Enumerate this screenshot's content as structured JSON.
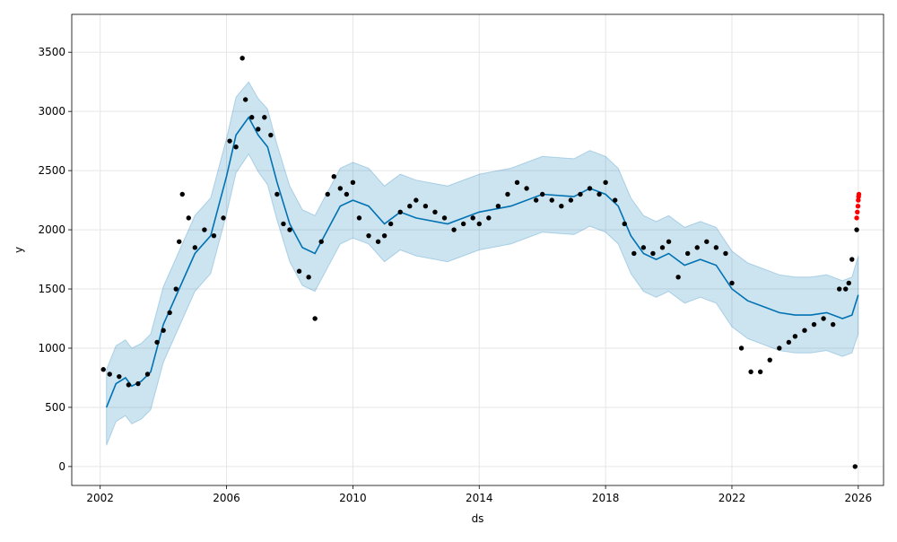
{
  "chart_data": {
    "type": "line",
    "title": "",
    "xlabel": "ds",
    "ylabel": "y",
    "grid": true,
    "legend": "none",
    "xlim": [
      2001.1,
      2026.8
    ],
    "ylim": [
      -160,
      3820
    ],
    "x_ticks": [
      2002,
      2006,
      2010,
      2014,
      2018,
      2022,
      2026
    ],
    "y_ticks": [
      0,
      500,
      1000,
      1500,
      2000,
      2500,
      3000,
      3500
    ],
    "colors": {
      "forecast_line": "#0072B2",
      "uncertainty_band": "#0072B2",
      "history_points": "#000000",
      "recent_points": "#ff0000",
      "grid": "#e6e6e6"
    },
    "series": [
      {
        "name": "yhat",
        "kind": "line",
        "x": [
          2002.2,
          2002.5,
          2002.8,
          2003.0,
          2003.3,
          2003.6,
          2004.0,
          2004.5,
          2005.0,
          2005.5,
          2006.0,
          2006.3,
          2006.7,
          2007.0,
          2007.3,
          2007.6,
          2008.0,
          2008.4,
          2008.8,
          2009.2,
          2009.6,
          2010.0,
          2010.5,
          2011.0,
          2011.5,
          2012.0,
          2013.0,
          2014.0,
          2015.0,
          2016.0,
          2017.0,
          2017.5,
          2018.0,
          2018.4,
          2018.8,
          2019.2,
          2019.6,
          2020.0,
          2020.5,
          2021.0,
          2021.5,
          2022.0,
          2022.5,
          2023.0,
          2023.5,
          2024.0,
          2024.5,
          2025.0,
          2025.5,
          2025.8,
          2026.0
        ],
        "y": [
          500,
          700,
          750,
          680,
          720,
          800,
          1200,
          1500,
          1800,
          1950,
          2450,
          2800,
          2950,
          2800,
          2700,
          2400,
          2050,
          1850,
          1800,
          2000,
          2200,
          2250,
          2200,
          2050,
          2150,
          2100,
          2050,
          2150,
          2200,
          2300,
          2280,
          2350,
          2300,
          2200,
          1950,
          1800,
          1750,
          1800,
          1700,
          1750,
          1700,
          1500,
          1400,
          1350,
          1300,
          1280,
          1280,
          1300,
          1250,
          1280,
          1450
        ]
      },
      {
        "name": "yhat_upper",
        "kind": "band_upper",
        "x": [
          2002.2,
          2002.5,
          2002.8,
          2003.0,
          2003.3,
          2003.6,
          2004.0,
          2004.5,
          2005.0,
          2005.5,
          2006.0,
          2006.3,
          2006.7,
          2007.0,
          2007.3,
          2007.6,
          2008.0,
          2008.4,
          2008.8,
          2009.2,
          2009.6,
          2010.0,
          2010.5,
          2011.0,
          2011.5,
          2012.0,
          2013.0,
          2014.0,
          2015.0,
          2016.0,
          2017.0,
          2017.5,
          2018.0,
          2018.4,
          2018.8,
          2019.2,
          2019.6,
          2020.0,
          2020.5,
          2021.0,
          2021.5,
          2022.0,
          2022.5,
          2023.0,
          2023.5,
          2024.0,
          2024.5,
          2025.0,
          2025.5,
          2025.8,
          2026.0
        ],
        "y": [
          820,
          1020,
          1070,
          1000,
          1040,
          1120,
          1520,
          1820,
          2120,
          2270,
          2770,
          3120,
          3250,
          3110,
          3020,
          2720,
          2370,
          2170,
          2120,
          2320,
          2520,
          2570,
          2520,
          2370,
          2470,
          2420,
          2370,
          2470,
          2520,
          2620,
          2600,
          2670,
          2620,
          2520,
          2270,
          2120,
          2070,
          2120,
          2020,
          2070,
          2020,
          1820,
          1720,
          1670,
          1620,
          1600,
          1600,
          1620,
          1570,
          1600,
          1780
        ]
      },
      {
        "name": "yhat_lower",
        "kind": "band_lower",
        "x": [
          2002.2,
          2002.5,
          2002.8,
          2003.0,
          2003.3,
          2003.6,
          2004.0,
          2004.5,
          2005.0,
          2005.5,
          2006.0,
          2006.3,
          2006.7,
          2007.0,
          2007.3,
          2007.6,
          2008.0,
          2008.4,
          2008.8,
          2009.2,
          2009.6,
          2010.0,
          2010.5,
          2011.0,
          2011.5,
          2012.0,
          2013.0,
          2014.0,
          2015.0,
          2016.0,
          2017.0,
          2017.5,
          2018.0,
          2018.4,
          2018.8,
          2019.2,
          2019.6,
          2020.0,
          2020.5,
          2021.0,
          2021.5,
          2022.0,
          2022.5,
          2023.0,
          2023.5,
          2024.0,
          2024.5,
          2025.0,
          2025.5,
          2025.8,
          2026.0
        ],
        "y": [
          180,
          380,
          430,
          360,
          400,
          480,
          880,
          1180,
          1480,
          1630,
          2130,
          2480,
          2640,
          2490,
          2380,
          2080,
          1730,
          1530,
          1480,
          1680,
          1880,
          1930,
          1880,
          1730,
          1830,
          1780,
          1730,
          1830,
          1880,
          1980,
          1960,
          2030,
          1980,
          1880,
          1630,
          1480,
          1430,
          1480,
          1380,
          1430,
          1380,
          1180,
          1080,
          1030,
          980,
          960,
          960,
          980,
          930,
          960,
          1120
        ]
      },
      {
        "name": "y",
        "kind": "points",
        "color": "#000000",
        "x": [
          2002.1,
          2002.3,
          2002.6,
          2002.9,
          2003.2,
          2003.5,
          2003.8,
          2004.0,
          2004.2,
          2004.4,
          2004.5,
          2004.6,
          2004.8,
          2005.0,
          2005.3,
          2005.6,
          2005.9,
          2006.1,
          2006.3,
          2006.5,
          2006.6,
          2006.8,
          2007.0,
          2007.2,
          2007.4,
          2007.6,
          2007.8,
          2008.0,
          2008.3,
          2008.6,
          2008.8,
          2009.0,
          2009.2,
          2009.4,
          2009.6,
          2009.8,
          2010.0,
          2010.2,
          2010.5,
          2010.8,
          2011.0,
          2011.2,
          2011.5,
          2011.8,
          2012.0,
          2012.3,
          2012.6,
          2012.9,
          2013.2,
          2013.5,
          2013.8,
          2014.0,
          2014.3,
          2014.6,
          2014.9,
          2015.2,
          2015.5,
          2015.8,
          2016.0,
          2016.3,
          2016.6,
          2016.9,
          2017.2,
          2017.5,
          2017.8,
          2018.0,
          2018.3,
          2018.6,
          2018.9,
          2019.2,
          2019.5,
          2019.8,
          2020.0,
          2020.3,
          2020.6,
          2020.9,
          2021.2,
          2021.5,
          2021.8,
          2022.0,
          2022.3,
          2022.6,
          2022.9,
          2023.2,
          2023.5,
          2023.8,
          2024.0,
          2024.3,
          2024.6,
          2024.9,
          2025.2,
          2025.4,
          2025.6,
          2025.7,
          2025.8,
          2025.9,
          2025.95
        ],
        "y": [
          820,
          780,
          760,
          690,
          700,
          780,
          1050,
          1150,
          1300,
          1500,
          1900,
          2300,
          2100,
          1850,
          2000,
          1950,
          2100,
          2750,
          2700,
          3450,
          3100,
          2950,
          2850,
          2950,
          2800,
          2300,
          2050,
          2000,
          1650,
          1600,
          1250,
          1900,
          2300,
          2450,
          2350,
          2300,
          2400,
          2100,
          1950,
          1900,
          1950,
          2050,
          2150,
          2200,
          2250,
          2200,
          2150,
          2100,
          2000,
          2050,
          2100,
          2050,
          2100,
          2200,
          2300,
          2400,
          2350,
          2250,
          2300,
          2250,
          2200,
          2250,
          2300,
          2350,
          2300,
          2400,
          2250,
          2050,
          1800,
          1850,
          1800,
          1850,
          1900,
          1600,
          1800,
          1850,
          1900,
          1850,
          1800,
          1550,
          1000,
          800,
          800,
          900,
          1000,
          1050,
          1100,
          1150,
          1200,
          1250,
          1200,
          1500,
          1500,
          1550,
          1750,
          0,
          2000
        ]
      },
      {
        "name": "y_recent",
        "kind": "points",
        "color": "#ff0000",
        "x": [
          2025.95,
          2025.97,
          2025.99,
          2026.0,
          2026.01,
          2026.02
        ],
        "y": [
          2100,
          2150,
          2200,
          2250,
          2280,
          2300
        ]
      }
    ]
  }
}
